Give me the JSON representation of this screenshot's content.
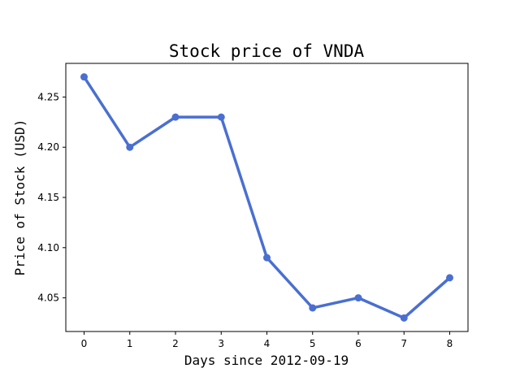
{
  "chart_data": {
    "type": "line",
    "title": "Stock price of VNDA",
    "xlabel": "Days since 2012-09-19",
    "ylabel": "Price of Stock (USD)",
    "x": [
      0,
      1,
      2,
      3,
      4,
      5,
      6,
      7,
      8
    ],
    "series": [
      {
        "values": [
          4.27,
          4.2,
          4.23,
          4.23,
          4.09,
          4.04,
          4.05,
          4.03,
          4.07
        ]
      }
    ],
    "xlim": [
      -0.4,
      8.4
    ],
    "ylim": [
      4.0165,
      4.2835
    ],
    "xticks": [
      "0",
      "1",
      "2",
      "3",
      "4",
      "5",
      "6",
      "7",
      "8"
    ],
    "yticks": [
      "4.05",
      "4.10",
      "4.15",
      "4.20",
      "4.25"
    ],
    "grid": false,
    "line_color": "#4a6fd1"
  }
}
